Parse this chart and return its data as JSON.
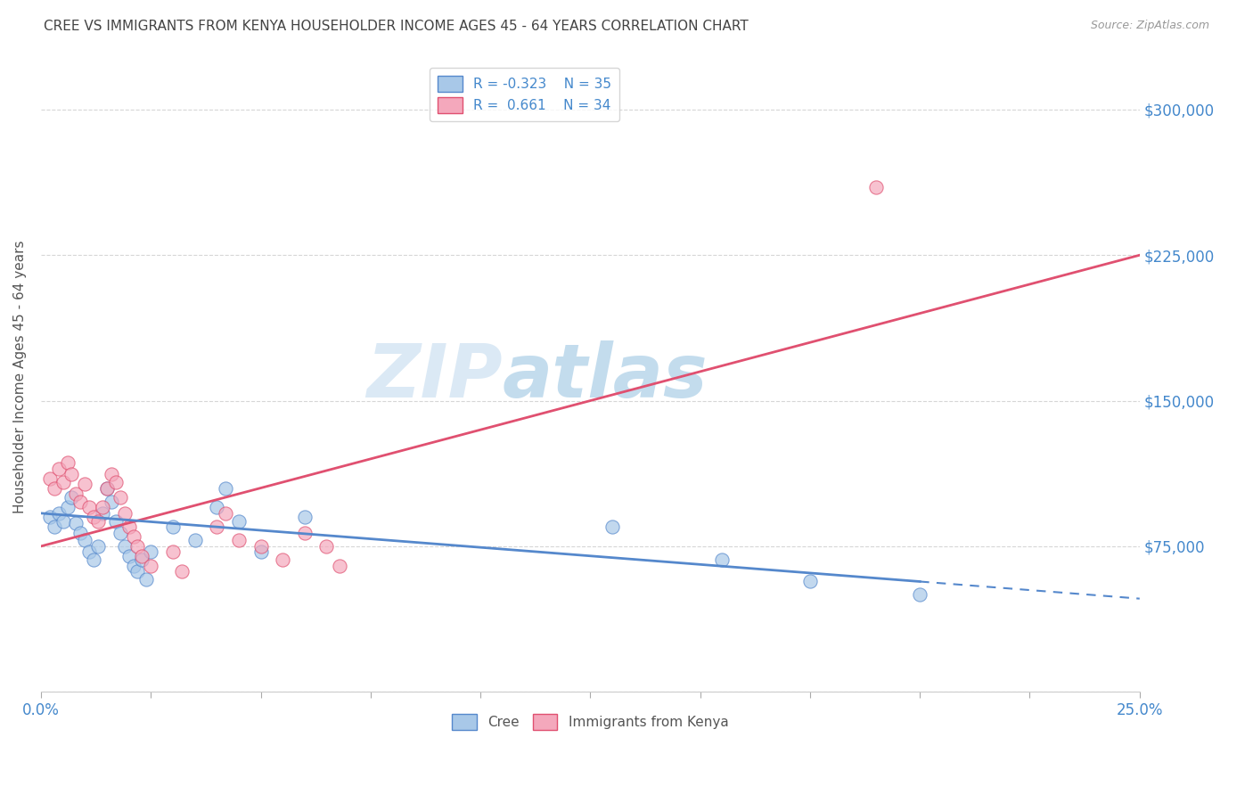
{
  "title": "CREE VS IMMIGRANTS FROM KENYA HOUSEHOLDER INCOME AGES 45 - 64 YEARS CORRELATION CHART",
  "source": "Source: ZipAtlas.com",
  "ylabel": "Householder Income Ages 45 - 64 years",
  "xlim": [
    0.0,
    0.25
  ],
  "ylim": [
    0,
    325000
  ],
  "yticks": [
    0,
    75000,
    150000,
    225000,
    300000
  ],
  "ytick_labels": [
    "",
    "$75,000",
    "$150,000",
    "$225,000",
    "$300,000"
  ],
  "watermark_zip": "ZIP",
  "watermark_atlas": "atlas",
  "legend_r_cree": "-0.323",
  "legend_n_cree": "35",
  "legend_r_kenya": "0.661",
  "legend_n_kenya": "34",
  "cree_color": "#a8c8e8",
  "kenya_color": "#f4a8bc",
  "cree_line_color": "#5588cc",
  "kenya_line_color": "#e05070",
  "background_color": "#ffffff",
  "grid_color": "#cccccc",
  "title_color": "#444444",
  "axis_label_color": "#555555",
  "tick_color_right": "#4488cc",
  "cree_x": [
    0.002,
    0.003,
    0.004,
    0.005,
    0.006,
    0.007,
    0.008,
    0.009,
    0.01,
    0.011,
    0.012,
    0.013,
    0.014,
    0.015,
    0.016,
    0.017,
    0.018,
    0.019,
    0.02,
    0.021,
    0.022,
    0.023,
    0.024,
    0.025,
    0.03,
    0.035,
    0.04,
    0.042,
    0.045,
    0.05,
    0.06,
    0.13,
    0.155,
    0.175,
    0.2
  ],
  "cree_y": [
    90000,
    85000,
    92000,
    88000,
    95000,
    100000,
    87000,
    82000,
    78000,
    72000,
    68000,
    75000,
    92000,
    105000,
    98000,
    88000,
    82000,
    75000,
    70000,
    65000,
    62000,
    68000,
    58000,
    72000,
    85000,
    78000,
    95000,
    105000,
    88000,
    72000,
    90000,
    85000,
    68000,
    57000,
    50000
  ],
  "kenya_x": [
    0.002,
    0.003,
    0.004,
    0.005,
    0.006,
    0.007,
    0.008,
    0.009,
    0.01,
    0.011,
    0.012,
    0.013,
    0.014,
    0.015,
    0.016,
    0.017,
    0.018,
    0.019,
    0.02,
    0.021,
    0.022,
    0.023,
    0.025,
    0.03,
    0.032,
    0.04,
    0.042,
    0.045,
    0.05,
    0.055,
    0.06,
    0.065,
    0.068,
    0.19
  ],
  "kenya_y": [
    110000,
    105000,
    115000,
    108000,
    118000,
    112000,
    102000,
    98000,
    107000,
    95000,
    90000,
    88000,
    95000,
    105000,
    112000,
    108000,
    100000,
    92000,
    85000,
    80000,
    75000,
    70000,
    65000,
    72000,
    62000,
    85000,
    92000,
    78000,
    75000,
    68000,
    82000,
    75000,
    65000,
    260000
  ],
  "cree_line_x0": 0.0,
  "cree_line_y0": 92000,
  "cree_line_x1": 0.25,
  "cree_line_y1": 48000,
  "kenya_line_x0": 0.0,
  "kenya_line_y0": 75000,
  "kenya_line_x1": 0.25,
  "kenya_line_y1": 225000
}
